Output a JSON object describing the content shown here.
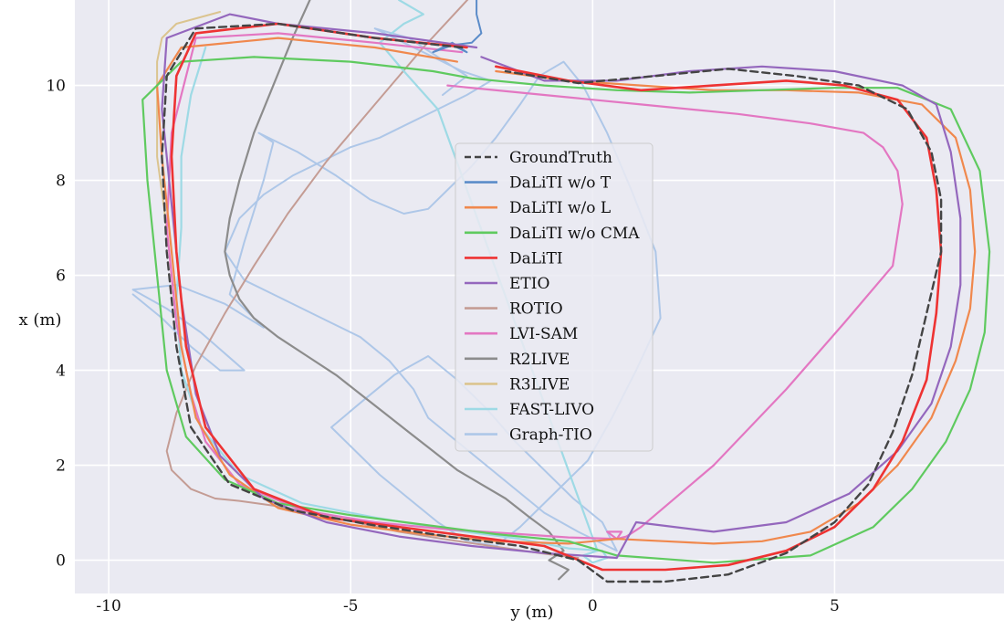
{
  "chart_data": {
    "type": "line",
    "xlabel": "y (m)",
    "ylabel": "x (m)",
    "xlim": [
      -10.7,
      8.5
    ],
    "ylim": [
      -0.7,
      11.8
    ],
    "xticks": [
      -10,
      -5,
      0,
      5
    ],
    "yticks": [
      0,
      2,
      4,
      6,
      8,
      10
    ],
    "grid": true,
    "background": "#eaeaf2",
    "legend_position": "center",
    "series": [
      {
        "name": "Graph-TIO",
        "color": "#aec7e8",
        "dash": "",
        "width": 2,
        "x": [
          -9.5,
          -8.9,
          -8.3,
          -7.7,
          -7.2,
          -8.1,
          -8.8,
          -9.5,
          -8.6,
          -7.6,
          -6.8,
          -7.5,
          -7.2,
          -6.8,
          -6.6,
          -6.9,
          -6.1,
          -5.3,
          -4.6,
          -3.9,
          -3.4,
          -3.0,
          -2.5,
          -2.0,
          -1.5,
          -1.1,
          -0.6,
          -0.2,
          0.3,
          0.8,
          1.3,
          1.4,
          0.9,
          0.4,
          -0.1,
          -0.6,
          -1.1,
          -1.5,
          -2.0,
          -2.6,
          -3.2,
          -3.8,
          -4.4,
          -4.9,
          -5.4,
          -4.7,
          -4.1,
          -3.4,
          -2.8,
          -2.2,
          -1.6,
          -1.0,
          -0.4,
          0.2,
          0.5,
          -0.3,
          -1.0,
          -1.6,
          -2.2,
          -2.8,
          -3.4,
          -3.7,
          -4.2,
          -4.8,
          -5.4,
          -6.0,
          -6.6,
          -7.2,
          -7.6,
          -7.3,
          -6.8,
          -6.2,
          -5.6,
          -5.0,
          -4.4,
          -3.8,
          -3.2,
          -2.6,
          -2.1,
          -2.7,
          -3.3,
          -3.9,
          -4.5,
          -3.8,
          -3.2,
          -2.6,
          -3.1
        ],
        "y": [
          5.6,
          5.1,
          4.5,
          4.0,
          4.0,
          4.8,
          5.3,
          5.7,
          5.8,
          5.4,
          4.9,
          5.6,
          6.7,
          8.0,
          8.8,
          9.0,
          8.6,
          8.1,
          7.6,
          7.3,
          7.4,
          7.8,
          8.3,
          8.9,
          9.6,
          10.2,
          10.5,
          10.0,
          9.0,
          7.8,
          6.5,
          5.1,
          4.0,
          3.0,
          2.1,
          1.6,
          1.1,
          0.7,
          0.3,
          0.4,
          0.8,
          1.3,
          1.8,
          2.3,
          2.8,
          3.4,
          3.9,
          4.3,
          3.8,
          3.2,
          2.5,
          1.9,
          1.3,
          0.8,
          0.2,
          0.6,
          1.0,
          1.5,
          2.0,
          2.5,
          3.0,
          3.6,
          4.2,
          4.7,
          5.0,
          5.3,
          5.6,
          5.9,
          6.5,
          7.2,
          7.7,
          8.1,
          8.4,
          8.7,
          8.9,
          9.2,
          9.5,
          9.8,
          10.1,
          10.3,
          10.6,
          10.9,
          11.2,
          11.0,
          10.6,
          10.2,
          9.8
        ]
      },
      {
        "name": "ROTIO",
        "color": "#c49c94",
        "dash": "",
        "width": 2,
        "x": [
          -2.5,
          -3.5,
          -4.5,
          -5.5,
          -6.3,
          -7.0,
          -7.6,
          -8.2,
          -8.6,
          -8.8,
          -8.7,
          -8.3,
          -7.8,
          -7.3,
          -6.6,
          -5.8,
          -4.9,
          -4.0,
          -3.1,
          -2.1,
          -1.1,
          -0.3
        ],
        "y": [
          11.9,
          10.8,
          9.6,
          8.4,
          7.3,
          6.2,
          5.2,
          4.1,
          3.1,
          2.3,
          1.9,
          1.5,
          1.3,
          1.25,
          1.15,
          1.0,
          0.8,
          0.6,
          0.45,
          0.3,
          0.15,
          0.05
        ]
      },
      {
        "name": "R2LIVE",
        "color": "#8c8c8c",
        "dash": "",
        "width": 2.2,
        "x": [
          -5.8,
          -6.2,
          -6.6,
          -7.0,
          -7.3,
          -7.5,
          -7.6,
          -7.5,
          -7.3,
          -7.0,
          -6.5,
          -5.9,
          -5.3,
          -4.8,
          -4.3,
          -3.8,
          -3.3,
          -2.8,
          -2.3,
          -1.8,
          -1.3,
          -0.9,
          -0.6,
          -0.9,
          -0.5,
          -0.7
        ],
        "y": [
          11.9,
          11.0,
          10.0,
          9.0,
          8.0,
          7.2,
          6.5,
          6.0,
          5.5,
          5.1,
          4.7,
          4.3,
          3.9,
          3.5,
          3.1,
          2.7,
          2.3,
          1.9,
          1.6,
          1.3,
          0.9,
          0.6,
          0.2,
          0.0,
          -0.2,
          -0.4
        ]
      },
      {
        "name": "FAST-LIVO",
        "color": "#9edae5",
        "dash": "",
        "width": 2.2,
        "x": [
          -8.0,
          -8.3,
          -8.5,
          -8.5,
          -8.6,
          -8.5,
          -8.1,
          -7.3,
          -6.0,
          -4.5,
          -3.0,
          -1.5,
          -0.5,
          0.2,
          0.3,
          0.0,
          -0.2,
          0.1,
          -3.2,
          -3.9,
          -4.4,
          -3.9,
          -3.5,
          -4.0
        ],
        "y": [
          10.8,
          9.8,
          8.5,
          7.0,
          5.5,
          4.0,
          2.8,
          1.8,
          1.2,
          0.9,
          0.65,
          0.45,
          0.25,
          0.2,
          0.05,
          -0.05,
          0.1,
          0.2,
          9.5,
          10.3,
          10.9,
          11.3,
          11.5,
          11.8
        ]
      },
      {
        "name": "R3LIVE",
        "color": "#dbc48f",
        "dash": "",
        "width": 2,
        "x": [
          -7.7,
          -8.6,
          -8.9,
          -9.0,
          -9.0,
          -9.0,
          -8.8
        ],
        "y": [
          11.55,
          11.3,
          11.0,
          10.5,
          9.8,
          8.5,
          7.0
        ]
      },
      {
        "name": "LVI-SAM",
        "color": "#e377c2",
        "dash": "",
        "width": 2.2,
        "x": [
          -2.7,
          -4.5,
          -6.5,
          -8.2,
          -8.7,
          -8.8,
          -8.6,
          -8.3,
          -8.0,
          -7.3,
          -6.0,
          -4.5,
          -3.0,
          -1.5,
          -0.5,
          0.5,
          0.6,
          0.3,
          0.5,
          0.7,
          1.0,
          2.5,
          4.0,
          5.2,
          6.2,
          6.4,
          6.3,
          6.0,
          5.6,
          4.5,
          3.0,
          1.0,
          -1.0,
          -3.0
        ],
        "y": [
          10.7,
          10.9,
          11.1,
          11.0,
          9.0,
          7.0,
          5.0,
          3.5,
          2.5,
          1.6,
          1.05,
          0.8,
          0.65,
          0.55,
          0.48,
          0.45,
          0.6,
          0.6,
          0.45,
          0.5,
          0.7,
          2.0,
          3.6,
          5.0,
          6.2,
          7.5,
          8.2,
          8.7,
          9.0,
          9.2,
          9.4,
          9.6,
          9.8,
          10.0
        ]
      },
      {
        "name": "DaLiTI w/o T",
        "color": "#5b8cc9",
        "dash": "",
        "width": 2,
        "x": [
          -2.4,
          -2.4,
          -2.3,
          -2.5,
          -2.9,
          -3.3,
          -2.9,
          -2.6,
          -2.8
        ],
        "y": [
          11.9,
          11.5,
          11.1,
          10.9,
          10.85,
          10.7,
          10.9,
          10.7,
          10.8
        ]
      },
      {
        "name": "DaLiTI w/o L",
        "color": "#f0884d",
        "dash": "",
        "width": 2.2,
        "x": [
          -2.8,
          -4.5,
          -6.5,
          -8.5,
          -9.0,
          -8.9,
          -8.7,
          -8.5,
          -8.2,
          -7.5,
          -6.5,
          -5.0,
          -3.5,
          -2.0,
          -0.5,
          0.5,
          1.5,
          2.5,
          3.5,
          4.5,
          5.5,
          6.3,
          7.0,
          7.5,
          7.8,
          7.9,
          7.8,
          7.5,
          6.8,
          5.5,
          4.0,
          2.5,
          1.0,
          -0.5,
          -2.0
        ],
        "y": [
          10.5,
          10.8,
          11.0,
          10.8,
          10.0,
          8.5,
          6.5,
          4.5,
          3.0,
          1.8,
          1.1,
          0.75,
          0.55,
          0.4,
          0.35,
          0.45,
          0.4,
          0.35,
          0.4,
          0.6,
          1.2,
          2.0,
          3.0,
          4.2,
          5.3,
          6.5,
          7.8,
          8.9,
          9.6,
          9.85,
          9.9,
          9.9,
          10.0,
          10.1,
          10.3
        ]
      },
      {
        "name": "DaLiTI w/o CMA",
        "color": "#5fca5f",
        "dash": "",
        "width": 2.2,
        "x": [
          -3.3,
          -5.0,
          -7.0,
          -8.5,
          -9.3,
          -9.2,
          -9.0,
          -8.8,
          -8.4,
          -7.6,
          -6.5,
          -5.0,
          -3.5,
          -2.0,
          -0.5,
          0.5,
          2.5,
          4.5,
          5.8,
          6.6,
          7.3,
          7.8,
          8.1,
          8.2,
          8.0,
          7.4,
          6.3,
          5.0,
          3.5,
          2.0,
          0.5,
          -1.0,
          -2.5,
          -3.3
        ],
        "y": [
          10.3,
          10.5,
          10.6,
          10.5,
          9.7,
          8.0,
          6.0,
          4.0,
          2.6,
          1.7,
          1.2,
          0.95,
          0.75,
          0.55,
          0.4,
          0.1,
          -0.05,
          0.1,
          0.7,
          1.5,
          2.5,
          3.6,
          4.8,
          6.5,
          8.2,
          9.5,
          9.95,
          9.95,
          9.9,
          9.85,
          9.9,
          10.0,
          10.15,
          10.3
        ]
      },
      {
        "name": "ETIO",
        "color": "#9467bd",
        "dash": "",
        "width": 2.2,
        "x": [
          -2.4,
          -4.5,
          -6.5,
          -7.5,
          -8.8,
          -8.9,
          -8.7,
          -8.5,
          -8.2,
          -7.7,
          -6.8,
          -5.5,
          -4.0,
          -2.5,
          -1.0,
          0.5,
          0.9,
          2.5,
          4.0,
          5.3,
          6.3,
          7.0,
          7.4,
          7.6,
          7.6,
          7.4,
          7.1,
          6.4,
          5.0,
          3.5,
          2.0,
          0.5,
          -1.0,
          -2.3
        ],
        "y": [
          10.8,
          11.1,
          11.3,
          11.5,
          11.0,
          9.5,
          7.5,
          5.5,
          3.5,
          2.2,
          1.3,
          0.8,
          0.5,
          0.3,
          0.15,
          0.05,
          0.8,
          0.6,
          0.8,
          1.4,
          2.3,
          3.3,
          4.5,
          5.8,
          7.2,
          8.6,
          9.6,
          10.0,
          10.3,
          10.4,
          10.3,
          10.1,
          10.1,
          10.6
        ]
      },
      {
        "name": "DaLiTI",
        "color": "#ee3333",
        "dash": "",
        "width": 2.6,
        "x": [
          -2.6,
          -4.5,
          -6.5,
          -8.2,
          -8.6,
          -8.7,
          -8.6,
          -8.4,
          -8.0,
          -7.0,
          -5.5,
          -4.0,
          -2.5,
          -1.0,
          0.2,
          1.5,
          2.8,
          4.0,
          5.0,
          5.8,
          6.4,
          6.9,
          7.1,
          7.2,
          7.1,
          6.9,
          6.3,
          5.2,
          4.0,
          2.5,
          1.0,
          -0.5,
          -2.0
        ],
        "y": [
          10.8,
          11.0,
          11.3,
          11.1,
          10.2,
          8.5,
          6.5,
          4.5,
          2.8,
          1.5,
          0.9,
          0.7,
          0.5,
          0.3,
          -0.2,
          -0.2,
          -0.1,
          0.2,
          0.7,
          1.5,
          2.5,
          3.8,
          5.2,
          6.5,
          7.8,
          8.9,
          9.7,
          10.0,
          10.1,
          10.0,
          9.9,
          10.1,
          10.4
        ]
      },
      {
        "name": "GroundTruth",
        "color": "#444444",
        "dash": "8,5",
        "width": 2.4,
        "x": [
          -2.7,
          -4.5,
          -6.5,
          -8.2,
          -8.8,
          -8.9,
          -8.8,
          -8.6,
          -8.3,
          -7.5,
          -6.2,
          -4.6,
          -3.0,
          -1.5,
          -0.3,
          0.3,
          1.5,
          2.8,
          4.0,
          5.0,
          5.7,
          6.2,
          6.6,
          6.9,
          7.2,
          7.2,
          7.0,
          6.5,
          5.5,
          4.2,
          2.8,
          1.3,
          -0.3,
          -1.8
        ],
        "y": [
          10.8,
          11.0,
          11.3,
          11.2,
          10.2,
          8.5,
          6.5,
          4.5,
          2.8,
          1.6,
          1.05,
          0.75,
          0.5,
          0.3,
          0.0,
          -0.45,
          -0.45,
          -0.3,
          0.15,
          0.8,
          1.6,
          2.7,
          3.9,
          5.2,
          6.5,
          7.6,
          8.6,
          9.5,
          10.0,
          10.2,
          10.35,
          10.2,
          10.05,
          10.3
        ]
      }
    ],
    "legend_order": [
      "GroundTruth",
      "DaLiTI w/o T",
      "DaLiTI w/o L",
      "DaLiTI w/o CMA",
      "DaLiTI",
      "ETIO",
      "ROTIO",
      "LVI-SAM",
      "R2LIVE",
      "R3LIVE",
      "FAST-LIVO",
      "Graph-TIO"
    ]
  }
}
